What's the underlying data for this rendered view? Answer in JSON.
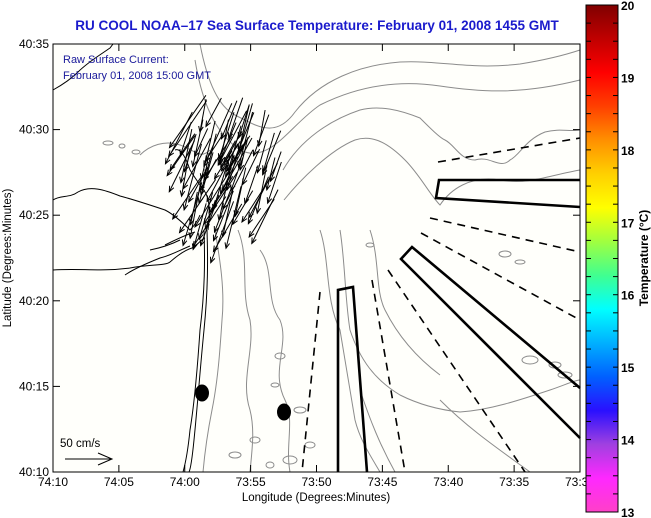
{
  "chart_data": {
    "type": "map",
    "title": "RU COOL  NOAA–17  Sea Surface Temperature:  February 01, 2008 1455 GMT",
    "xlabel": "Longitude (Degrees:Minutes)",
    "ylabel": "Latitude (Degrees:Minutes)",
    "x_ticks": [
      "74:10",
      "74:05",
      "74:00",
      "73:55",
      "73:50",
      "73:45",
      "73:40",
      "73:35",
      "73:30"
    ],
    "y_ticks": [
      "40:35",
      "40:30",
      "40:25",
      "40:20",
      "40:15",
      "40:10"
    ],
    "xlim": [
      "74:10",
      "73:30"
    ],
    "ylim": [
      "40:10",
      "40:35"
    ],
    "annotation": {
      "line1": "Raw Surface Current:",
      "line2": "February 01, 2008 15:00 GMT"
    },
    "scale_arrow": {
      "label": "50 cm/s",
      "value_cm_s": 50
    },
    "colorbar": {
      "label": "Temperature (°C)",
      "min": 13,
      "max": 20,
      "ticks": [
        "20",
        "19",
        "18",
        "17",
        "16",
        "15",
        "14",
        "13"
      ],
      "colors": [
        "#ff40c8",
        "#ff28ff",
        "#a040e0",
        "#2a10ff",
        "#0060ff",
        "#00b0ff",
        "#00ffff",
        "#40ff90",
        "#a0ff40",
        "#ffff00",
        "#ffd000",
        "#ff9000",
        "#ff4000",
        "#ff0000",
        "#c00000",
        "#800000"
      ]
    },
    "markers": [
      {
        "name": "marker-1",
        "lon": "74:01.3",
        "lat": "40:14.6"
      },
      {
        "name": "marker-2",
        "lon": "73:57.8",
        "lat": "40:13.5"
      }
    ],
    "colors": {
      "title": "#1a1acc",
      "annotation": "#1a1a9a",
      "coast": "#000000",
      "bathymetry": "#8c8c8c",
      "background": "#fffffb"
    }
  }
}
